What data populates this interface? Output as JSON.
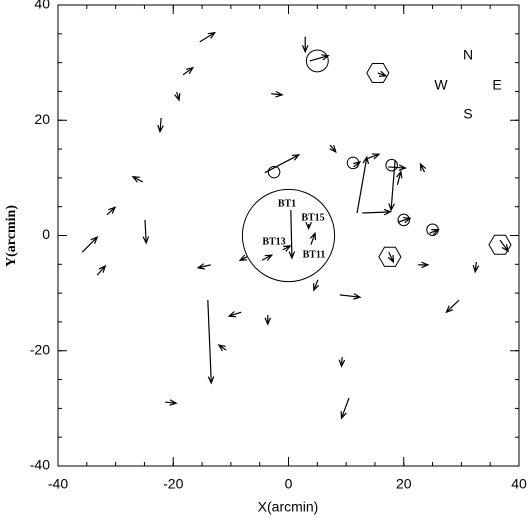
{
  "chart_data": {
    "type": "quiver",
    "x_label": "X(arcmin)",
    "y_label": "Y(arcmin)",
    "xlim": [
      -40,
      40
    ],
    "ylim": [
      -40,
      40
    ],
    "xticks": [
      -40,
      -20,
      0,
      20,
      40
    ],
    "yticks": [
      -40,
      -20,
      0,
      20,
      40
    ],
    "minor_tick_step": 5,
    "color": "#000000",
    "x": [
      -15.4,
      -18.3,
      -19.4,
      -22.1,
      -25.3,
      -31.5,
      -35.8,
      -33.2,
      -24.9,
      -13.5,
      -14.0,
      -10.8,
      -8.2,
      -3.6,
      -21.4,
      -7.2,
      0.4,
      -4.6,
      -1.0,
      3.5,
      3.9,
      -4.1,
      2.9,
      3.7,
      -3.0,
      7.2,
      11.9,
      12.8,
      18.5,
      18.9,
      13.8,
      17.3,
      23.6,
      11.3,
      19.0,
      24.5,
      22.5,
      17.4,
      36.7,
      32.6,
      29.6,
      8.9,
      5.1,
      9.3,
      10.5,
      15.5
    ],
    "y": [
      33.6,
      27.9,
      24.9,
      20.4,
      9.3,
      3.6,
      -2.9,
      -6.9,
      2.7,
      -5.1,
      -11.2,
      -19.9,
      -13.3,
      -13.8,
      -28.9,
      -3.7,
      4.4,
      -4.3,
      -2.5,
      2.0,
      -1.6,
      10.9,
      34.5,
      30.3,
      24.6,
      15.7,
      3.9,
      3.9,
      13.1,
      8.8,
      13.4,
      11.9,
      11.0,
      11.9,
      2.3,
      0.4,
      -5.1,
      -2.9,
      -0.8,
      -4.6,
      -11.2,
      -10.3,
      -7.7,
      -21.1,
      -28.2,
      28.2
    ],
    "x_end": [
      -12.8,
      -16.6,
      -19.0,
      -22.3,
      -27.0,
      -30.1,
      -33.2,
      -31.8,
      -24.7,
      -15.7,
      -13.4,
      -12.1,
      -10.3,
      -3.6,
      -19.5,
      -8.4,
      0.6,
      -2.9,
      0.3,
      3.5,
      4.6,
      1.8,
      2.9,
      6.9,
      -1.1,
      8.2,
      13.6,
      17.7,
      17.8,
      19.5,
      15.7,
      20.3,
      22.9,
      12.4,
      21.1,
      26.0,
      24.2,
      18.2,
      38.1,
      32.4,
      27.4,
      12.4,
      4.4,
      9.2,
      9.2,
      16.9
    ],
    "y_end": [
      35.2,
      29.1,
      23.5,
      18.0,
      10.2,
      4.9,
      -0.3,
      -5.3,
      -1.3,
      -5.6,
      -25.6,
      -19.0,
      -14.0,
      -15.4,
      -29.1,
      -4.3,
      -3.9,
      -3.4,
      -1.8,
      1.2,
      0.4,
      14.0,
      31.9,
      31.2,
      24.4,
      14.5,
      13.6,
      4.1,
      4.4,
      11.1,
      14.1,
      11.7,
      12.4,
      12.8,
      3.0,
      1.0,
      -5.1,
      -4.6,
      -2.7,
      -6.3,
      -13.3,
      -10.7,
      -9.5,
      -22.7,
      -31.7,
      27.7
    ],
    "circles": {
      "x": [
        0,
        -2.5,
        11.2,
        17.9,
        20.0,
        25.0,
        5.0
      ],
      "y": [
        0,
        11.0,
        12.6,
        12.2,
        2.7,
        1.0,
        30.3
      ],
      "r": [
        8.0,
        1.0,
        1.0,
        1.0,
        1.0,
        1.0,
        1.9
      ]
    },
    "hexagons": {
      "x": [
        15.5,
        17.6,
        36.7
      ],
      "y": [
        28.2,
        -3.7,
        -1.6
      ]
    },
    "annotations": [
      "BT1",
      "BT15",
      "BT13",
      "BT11"
    ],
    "compass": [
      "N",
      "W",
      "E",
      "S"
    ]
  }
}
